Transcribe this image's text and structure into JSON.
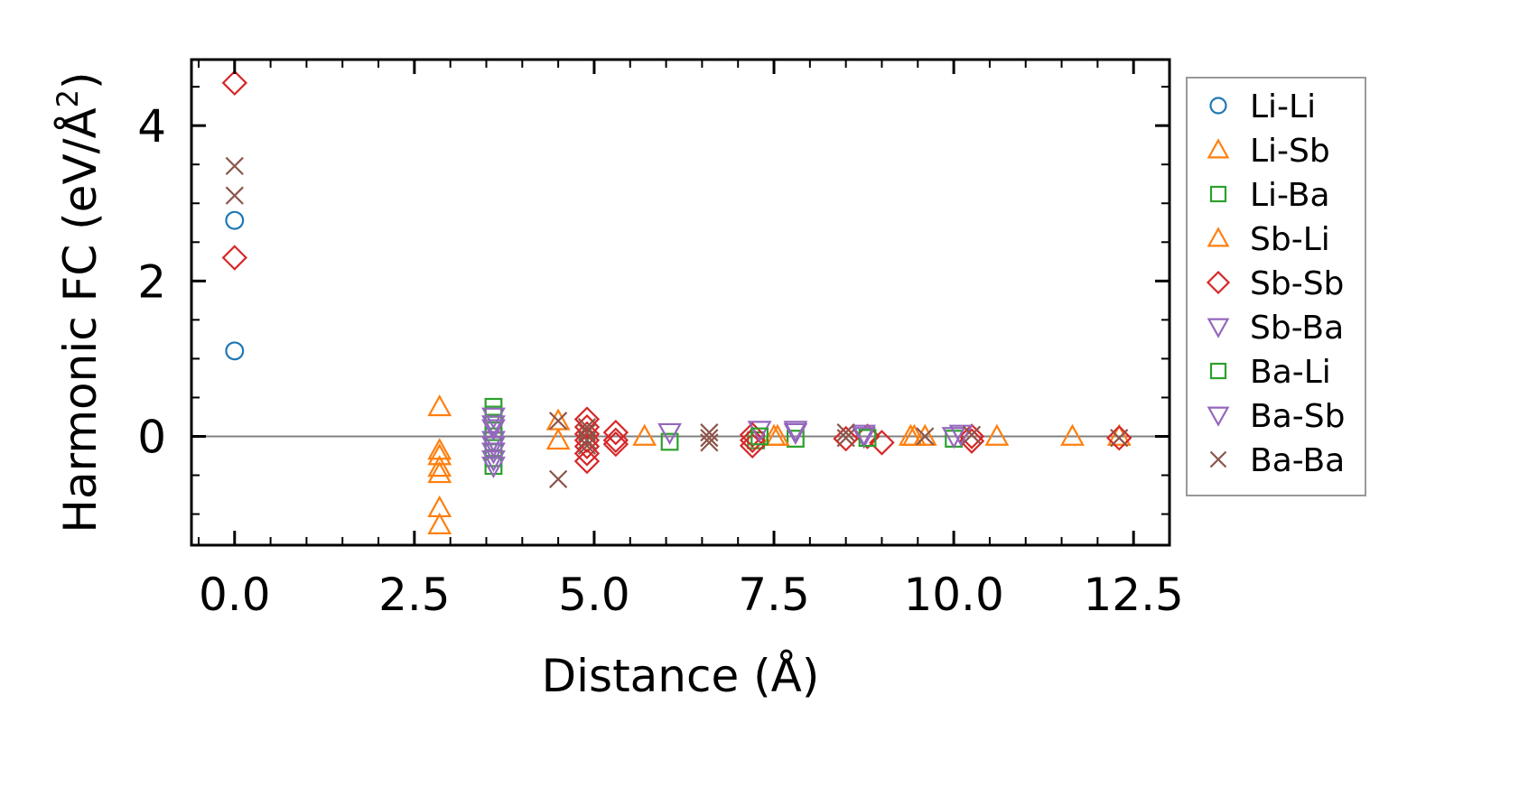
{
  "chart_data": {
    "type": "scatter",
    "title": "",
    "xlabel": "Distance (Å)",
    "ylabel_main": "Harmonic FC (eV/Å",
    "ylabel_sup": "2",
    "ylabel_close": ")",
    "xlim": [
      -0.6,
      13.0
    ],
    "ylim": [
      -1.4,
      4.85
    ],
    "x_ticks": [
      0.0,
      2.5,
      5.0,
      7.5,
      10.0,
      12.5
    ],
    "x_tick_labels": [
      "0.0",
      "2.5",
      "5.0",
      "7.5",
      "10.0",
      "12.5"
    ],
    "y_ticks": [
      0,
      2,
      4
    ],
    "y_tick_labels": [
      "0",
      "2",
      "4"
    ],
    "reference_line_y": 0,
    "legend_position": "outside-right",
    "series": [
      {
        "name": "Li-Li",
        "marker": "circle",
        "color": "#1f77b4",
        "points": [
          [
            0,
            2.78
          ],
          [
            0,
            1.1
          ]
        ]
      },
      {
        "name": "Li-Sb",
        "marker": "triangle-up",
        "color": "#ff7f0e",
        "points": [
          [
            2.85,
            0.38
          ],
          [
            2.85,
            -0.18
          ],
          [
            2.85,
            -0.25
          ],
          [
            2.85,
            -0.4
          ],
          [
            2.85,
            -0.48
          ],
          [
            2.85,
            -0.92
          ],
          [
            2.85,
            -1.14
          ],
          [
            4.5,
            0.2
          ],
          [
            4.5,
            -0.05
          ],
          [
            5.7,
            0.0
          ],
          [
            7.5,
            0.0
          ],
          [
            9.4,
            0.0
          ],
          [
            9.6,
            0.0
          ],
          [
            10.6,
            0.0
          ],
          [
            11.65,
            0.0
          ]
        ]
      },
      {
        "name": "Li-Ba",
        "marker": "square",
        "color": "#2ca02c",
        "points": [
          [
            3.6,
            0.38
          ],
          [
            3.6,
            0.28
          ],
          [
            3.6,
            0.15
          ],
          [
            3.6,
            0.0
          ],
          [
            3.6,
            -0.15
          ],
          [
            3.6,
            -0.28
          ],
          [
            3.6,
            -0.38
          ],
          [
            6.05,
            -0.07
          ],
          [
            7.25,
            -0.05
          ],
          [
            7.8,
            -0.03
          ],
          [
            10.0,
            -0.03
          ]
        ]
      },
      {
        "name": "Sb-Li",
        "marker": "triangle-up",
        "color": "#ff7f0e",
        "points": [
          [
            7.55,
            0.0
          ],
          [
            9.45,
            0.0
          ],
          [
            12.3,
            0.0
          ]
        ]
      },
      {
        "name": "Sb-Sb",
        "marker": "diamond",
        "color": "#d62728",
        "points": [
          [
            0,
            4.55
          ],
          [
            0,
            2.3
          ],
          [
            4.9,
            0.22
          ],
          [
            4.9,
            0.12
          ],
          [
            4.9,
            0.03
          ],
          [
            4.9,
            -0.05
          ],
          [
            4.9,
            -0.13
          ],
          [
            4.9,
            -0.22
          ],
          [
            4.9,
            -0.32
          ],
          [
            5.3,
            0.05
          ],
          [
            5.3,
            -0.05
          ],
          [
            5.3,
            -0.1
          ],
          [
            7.2,
            0.02
          ],
          [
            7.2,
            -0.05
          ],
          [
            7.2,
            -0.12
          ],
          [
            8.5,
            -0.03
          ],
          [
            8.8,
            0.0
          ],
          [
            9.0,
            -0.08
          ],
          [
            10.25,
            0.0
          ],
          [
            10.25,
            -0.06
          ],
          [
            12.3,
            -0.02
          ]
        ]
      },
      {
        "name": "Sb-Ba",
        "marker": "triangle-down",
        "color": "#9467bd",
        "points": [
          [
            3.6,
            0.25
          ],
          [
            3.6,
            0.1
          ],
          [
            3.6,
            -0.05
          ],
          [
            3.6,
            -0.2
          ],
          [
            3.6,
            -0.3
          ],
          [
            3.6,
            -0.38
          ],
          [
            6.05,
            0.05
          ],
          [
            7.3,
            0.08
          ],
          [
            7.8,
            0.08
          ],
          [
            8.75,
            0.0
          ],
          [
            10.0,
            0.0
          ]
        ]
      },
      {
        "name": "Ba-Li",
        "marker": "square",
        "color": "#2ca02c",
        "points": [
          [
            7.3,
            0.0
          ],
          [
            8.8,
            -0.02
          ]
        ]
      },
      {
        "name": "Ba-Sb",
        "marker": "triangle-down",
        "color": "#9467bd",
        "points": [
          [
            3.6,
            0.15
          ],
          [
            3.6,
            -0.12
          ],
          [
            7.8,
            0.05
          ],
          [
            8.75,
            0.03
          ],
          [
            10.1,
            0.03
          ]
        ]
      },
      {
        "name": "Ba-Ba",
        "marker": "x",
        "color": "#8c564b",
        "points": [
          [
            0,
            3.48
          ],
          [
            0,
            3.1
          ],
          [
            4.5,
            0.2
          ],
          [
            4.5,
            -0.55
          ],
          [
            4.9,
            0.12
          ],
          [
            4.9,
            0.05
          ],
          [
            4.9,
            -0.05
          ],
          [
            4.9,
            -0.12
          ],
          [
            6.6,
            0.05
          ],
          [
            6.6,
            -0.02
          ],
          [
            6.6,
            -0.08
          ],
          [
            8.5,
            0.05
          ],
          [
            8.5,
            -0.02
          ],
          [
            9.6,
            0.0
          ],
          [
            10.25,
            0.02
          ],
          [
            12.3,
            -0.02
          ]
        ]
      }
    ]
  }
}
